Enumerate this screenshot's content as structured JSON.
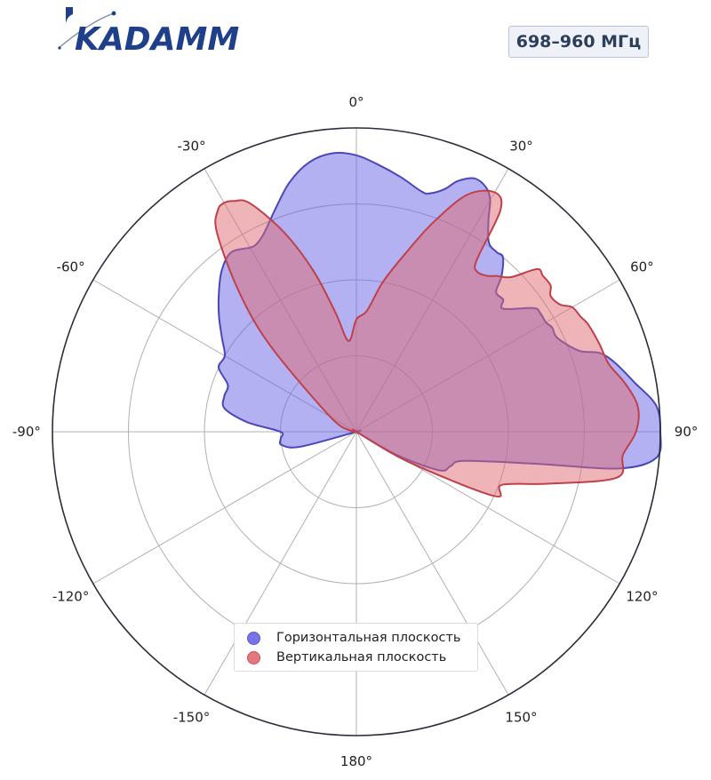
{
  "logo": {
    "text": "KADAMM",
    "icon": "kadamm-logo"
  },
  "band_label": "698–960 МГц",
  "colors": {
    "horizontal": "#6a64e8",
    "horizontal_edge": "#4a46b8",
    "vertical": "#e06a72",
    "vertical_edge": "#c0404a",
    "frame": "#2c2c3c",
    "grid": "#b0b0b0"
  },
  "chart_data": {
    "type": "polar-area",
    "theta_direction": "clockwise",
    "theta_zero": "top",
    "theta_ticks": [
      {
        "angle": 0,
        "label": "0°"
      },
      {
        "angle": 30,
        "label": "30°"
      },
      {
        "angle": 60,
        "label": "60°"
      },
      {
        "angle": 90,
        "label": "90°"
      },
      {
        "angle": 120,
        "label": "120°"
      },
      {
        "angle": 150,
        "label": "150°"
      },
      {
        "angle": 180,
        "label": "180°"
      },
      {
        "angle": -150,
        "label": "-150°"
      },
      {
        "angle": -120,
        "label": "-120°"
      },
      {
        "angle": -90,
        "label": "-90°"
      },
      {
        "angle": -60,
        "label": "-60°"
      },
      {
        "angle": -30,
        "label": "-30°"
      }
    ],
    "r_range": [
      0,
      1
    ],
    "r_gridlines": [
      0.25,
      0.5,
      0.75,
      1.0
    ],
    "legend_position": "bottom-center",
    "series": [
      {
        "name": "Горизонтальная плоскость",
        "theta": [
          -180,
          -150,
          -120,
          -105,
          -100,
          -95,
          -90,
          -85,
          -80,
          -75,
          -70,
          -65,
          -60,
          -55,
          -50,
          -45,
          -40,
          -35,
          -30,
          -28,
          -25,
          -20,
          -15,
          -10,
          -5,
          0,
          5,
          10,
          15,
          17,
          20,
          22,
          25,
          28,
          30,
          32,
          35,
          38,
          40,
          43,
          45,
          48,
          50,
          55,
          57,
          60,
          62,
          65,
          70,
          72,
          75,
          80,
          85,
          90,
          95,
          98,
          100,
          105,
          110,
          115,
          120,
          150
        ],
        "r": [
          0,
          0,
          0,
          0.19,
          0.25,
          0.25,
          0.25,
          0.36,
          0.44,
          0.45,
          0.45,
          0.5,
          0.5,
          0.54,
          0.59,
          0.64,
          0.69,
          0.72,
          0.7,
          0.7,
          0.72,
          0.78,
          0.85,
          0.9,
          0.92,
          0.91,
          0.88,
          0.85,
          0.82,
          0.82,
          0.85,
          0.89,
          0.92,
          0.91,
          0.88,
          0.82,
          0.76,
          0.75,
          0.75,
          0.7,
          0.65,
          0.65,
          0.63,
          0.71,
          0.72,
          0.72,
          0.73,
          0.73,
          0.78,
          0.84,
          0.88,
          0.93,
          0.99,
          1.0,
          0.99,
          0.87,
          0.61,
          0.37,
          0.33,
          0.3,
          0.15,
          0
        ]
      },
      {
        "name": "Вертикальная плоскость",
        "theta": [
          -180,
          -150,
          -100,
          -95,
          -80,
          -60,
          -45,
          -40,
          -35,
          -32,
          -30,
          -28,
          -25,
          -20,
          -15,
          -10,
          -5,
          0,
          5,
          10,
          15,
          20,
          25,
          30,
          33,
          35,
          37,
          40,
          42,
          45,
          48,
          50,
          53,
          55,
          58,
          60,
          63,
          65,
          70,
          75,
          80,
          85,
          90,
          95,
          100,
          105,
          110,
          115,
          120,
          150
        ],
        "r": [
          0,
          0,
          0,
          0,
          0.02,
          0.1,
          0.4,
          0.6,
          0.8,
          0.86,
          0.87,
          0.86,
          0.83,
          0.7,
          0.55,
          0.4,
          0.3,
          0.37,
          0.4,
          0.5,
          0.6,
          0.73,
          0.86,
          0.91,
          0.87,
          0.69,
          0.66,
          0.67,
          0.69,
          0.72,
          0.8,
          0.8,
          0.8,
          0.78,
          0.79,
          0.82,
          0.83,
          0.84,
          0.85,
          0.86,
          0.9,
          0.93,
          0.92,
          0.88,
          0.87,
          0.66,
          0.51,
          0.5,
          0.2,
          0
        ]
      }
    ]
  }
}
